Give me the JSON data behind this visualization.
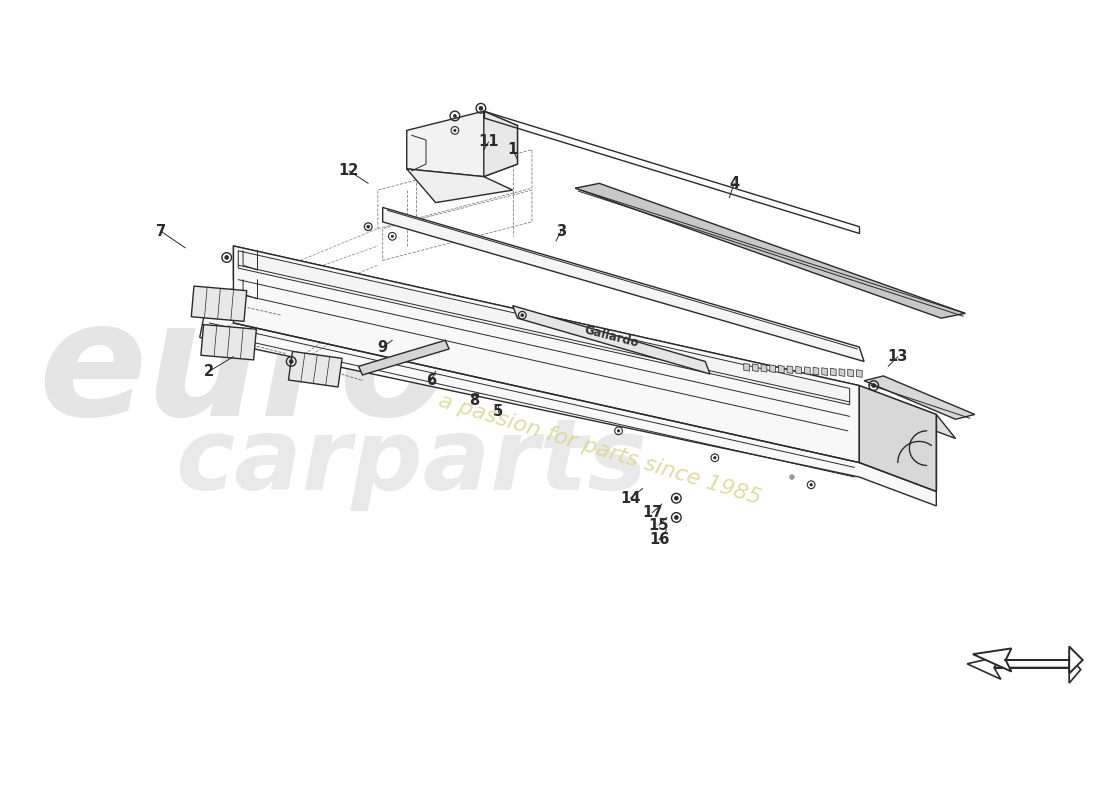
{
  "bg_color": "#ffffff",
  "line_color": "#2a2a2a",
  "lw_main": 1.0,
  "lw_thin": 0.7,
  "lw_dashed": 0.6,
  "watermark_circle_color": "#c8c8c8",
  "watermark_text_color": "#d0d0d0",
  "passion_text_color": "#d8d890",
  "label_fontsize": 10.5,
  "labels": {
    "1": [
      490,
      660,
      495,
      650
    ],
    "2": [
      175,
      430,
      200,
      445
    ],
    "3": [
      540,
      575,
      535,
      565
    ],
    "4": [
      720,
      625,
      715,
      610
    ],
    "5": [
      475,
      388,
      475,
      395
    ],
    "6": [
      405,
      420,
      410,
      430
    ],
    "7": [
      125,
      575,
      150,
      558
    ],
    "8": [
      450,
      400,
      455,
      407
    ],
    "9": [
      355,
      455,
      365,
      462
    ],
    "11": [
      465,
      668,
      460,
      660
    ],
    "12": [
      320,
      638,
      340,
      625
    ],
    "13": [
      890,
      445,
      880,
      435
    ],
    "14": [
      612,
      298,
      625,
      308
    ],
    "15": [
      642,
      270,
      650,
      278
    ],
    "16": [
      642,
      255,
      650,
      265
    ],
    "17": [
      635,
      283,
      645,
      292
    ]
  }
}
